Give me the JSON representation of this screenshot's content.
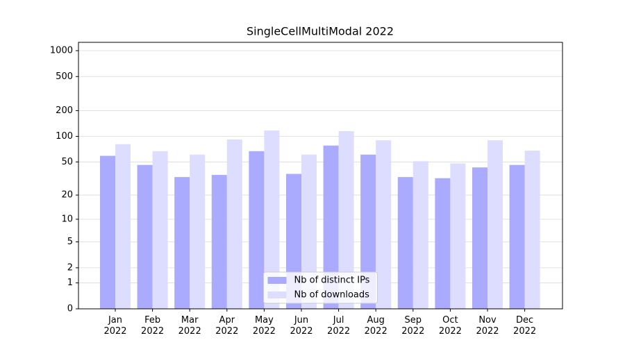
{
  "chart_data": {
    "type": "bar",
    "title": "SingleCellMultiModal 2022",
    "categories": [
      "Jan 2022",
      "Feb 2022",
      "Mar 2022",
      "Apr 2022",
      "May 2022",
      "Jun 2022",
      "Jul 2022",
      "Aug 2022",
      "Sep 2022",
      "Oct 2022",
      "Nov 2022",
      "Dec 2022"
    ],
    "series": [
      {
        "name": "Nb of distinct IPs",
        "color": "#aaaaff",
        "values": [
          59,
          46,
          33,
          35,
          67,
          36,
          78,
          61,
          33,
          32,
          43,
          46
        ]
      },
      {
        "name": "Nb of downloads",
        "color": "#ddddff",
        "values": [
          81,
          67,
          61,
          92,
          117,
          61,
          115,
          90,
          51,
          48,
          90,
          68
        ]
      }
    ],
    "yscale": "log1p",
    "ylim": [
      0,
      1250
    ],
    "yticks": [
      0,
      1,
      2,
      5,
      10,
      20,
      50,
      100,
      200,
      500,
      1000
    ],
    "grid": true,
    "legend": "lower center"
  }
}
